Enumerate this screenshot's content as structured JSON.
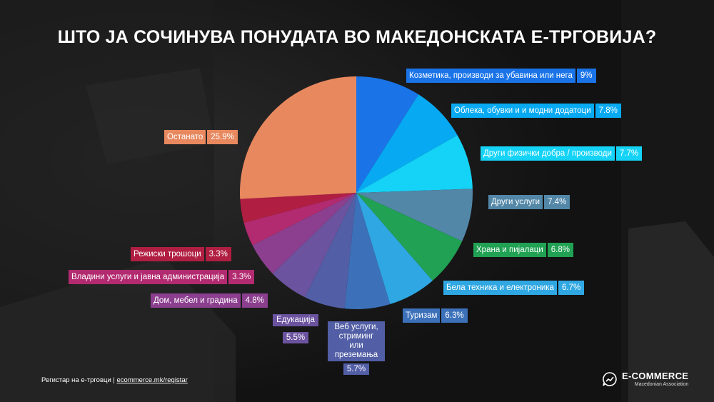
{
  "title": "ШТО ЈА СОЧИНУВА ПОНУДАТА ВО МАКЕДОНСКАТА Е-ТРГОВИЈА?",
  "chart_data": {
    "type": "pie",
    "title": "ШТО ЈА СОЧИНУВА ПОНУДАТА ВО МАКЕДОНСКАТА Е-ТРГОВИЈА?",
    "slices": [
      {
        "label": "Козметика, производи за убавина или нега",
        "value": 9,
        "display": "9%",
        "color": "#1a74e8"
      },
      {
        "label": "Облека, обувки и и модни додатоци",
        "value": 7.8,
        "display": "7.8%",
        "color": "#07aaf2"
      },
      {
        "label": "Други физички добра / производи",
        "value": 7.7,
        "display": "7.7%",
        "color": "#14d3f7"
      },
      {
        "label": "Други услуги",
        "value": 7.4,
        "display": "7.4%",
        "color": "#5287a8"
      },
      {
        "label": "Храна и пијалаци",
        "value": 6.8,
        "display": "6.8%",
        "color": "#20a153"
      },
      {
        "label": "Бела техника и електроника",
        "value": 6.7,
        "display": "6.7%",
        "color": "#2fa7e2"
      },
      {
        "label": "Туризам",
        "value": 6.3,
        "display": "6.3%",
        "color": "#3c71ba"
      },
      {
        "label": "Веб услуги, стриминг или преземања",
        "value": 5.7,
        "display": "5.7%",
        "color": "#525ea5"
      },
      {
        "label": "Едукација",
        "value": 5.5,
        "display": "5.5%",
        "color": "#6b539f"
      },
      {
        "label": "Дом, мебел и градина",
        "value": 4.8,
        "display": "4.8%",
        "color": "#8b3f8e"
      },
      {
        "label": "Владини услуги и јавна администрација",
        "value": 3.3,
        "display": "3.3%",
        "color": "#b22a6f"
      },
      {
        "label": "Режиски трошоци",
        "value": 3.3,
        "display": "3.3%",
        "color": "#b01e41"
      },
      {
        "label": "Останато",
        "value": 25.9,
        "display": "25.9%",
        "color": "#e8885f"
      }
    ],
    "start_angle_deg": 0,
    "direction": "clockwise",
    "legend": "none"
  },
  "labels": {
    "web_line1": "Веб услуги,",
    "web_line2": "стриминг или",
    "web_line3": "преземања"
  },
  "colors": {
    "label_blue_dark": "#1a74e8",
    "label_edu": "#6b539f"
  },
  "footer": {
    "text": "Регистар на е-трговци | ",
    "link": "ecommerce.mk/registar"
  },
  "brand": {
    "name": "E-COMMERCE",
    "sub": "Macedonian Association"
  }
}
